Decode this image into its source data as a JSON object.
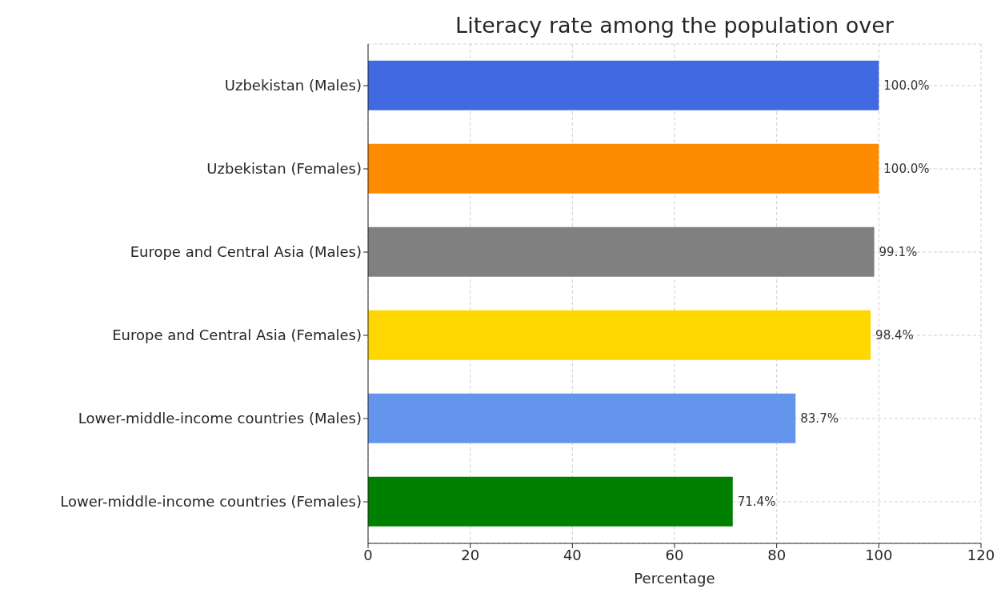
{
  "chart_data": {
    "type": "bar",
    "orientation": "horizontal",
    "title": "Literacy rate among the population over",
    "xlabel": "Percentage",
    "categories": [
      "Uzbekistan (Males)",
      "Uzbekistan (Females)",
      "Europe and Central Asia (Males)",
      "Europe and Central Asia (Females)",
      "Lower-middle-income countries (Males)",
      "Lower-middle-income countries (Females)"
    ],
    "values": [
      100.0,
      100.0,
      99.1,
      98.4,
      83.7,
      71.4
    ],
    "colors": [
      "#4169e1",
      "#ff8c00",
      "#808080",
      "#ffd700",
      "#6495ed",
      "#008000"
    ],
    "value_labels": [
      "100.0%",
      "100.0%",
      "99.1%",
      "98.4%",
      "83.7%",
      "71.4%"
    ],
    "xlim": [
      0,
      120
    ],
    "xticks": [
      0,
      20,
      40,
      60,
      80,
      100,
      120
    ],
    "grid": true
  }
}
